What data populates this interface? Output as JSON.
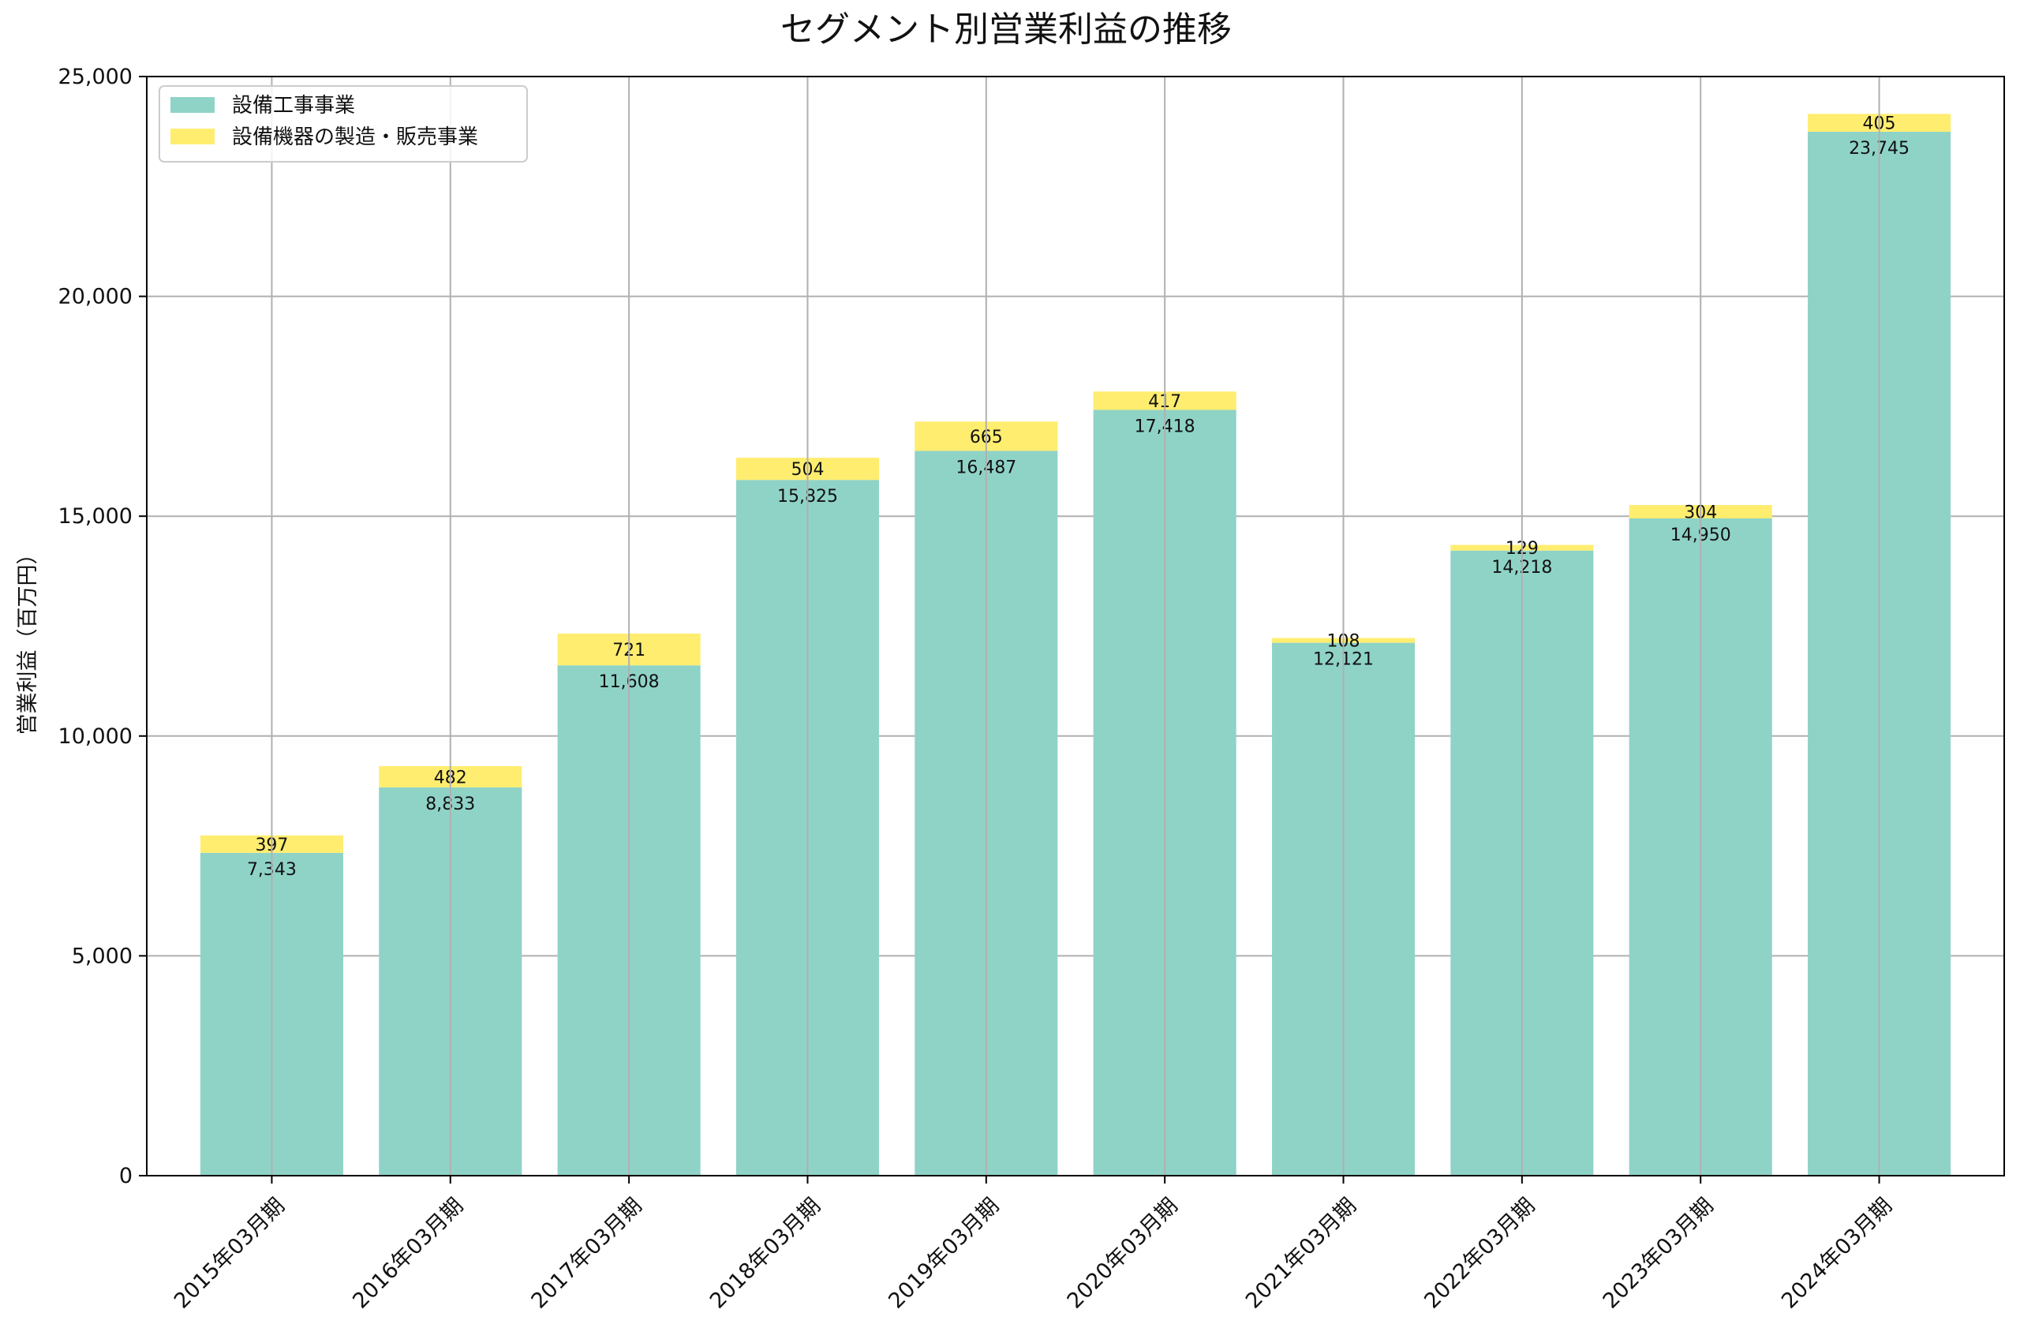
{
  "chart_data": {
    "type": "bar",
    "stacked": true,
    "title": "セグメント別営業利益の推移",
    "xlabel": "",
    "ylabel": "営業利益（百万円）",
    "ylim": [
      0,
      25000
    ],
    "yticks": [
      0,
      5000,
      10000,
      15000,
      20000,
      25000
    ],
    "ytick_labels": [
      "0",
      "5,000",
      "10,000",
      "15,000",
      "20,000",
      "25,000"
    ],
    "grid": true,
    "legend_position": "top-left",
    "categories": [
      "2015年03月期",
      "2016年03月期",
      "2017年03月期",
      "2018年03月期",
      "2019年03月期",
      "2020年03月期",
      "2021年03月期",
      "2022年03月期",
      "2023年03月期",
      "2024年03月期"
    ],
    "series": [
      {
        "name": "設備工事事業",
        "color": "#8fd3c7",
        "values": [
          7343,
          8833,
          11608,
          15825,
          16487,
          17418,
          12121,
          14218,
          14950,
          23745
        ],
        "labels": [
          "7,343",
          "8,833",
          "11,608",
          "15,825",
          "16,487",
          "17,418",
          "12,121",
          "14,218",
          "14,950",
          "23,745"
        ]
      },
      {
        "name": "設備機器の製造・販売事業",
        "color": "#ffed6f",
        "values": [
          397,
          482,
          721,
          504,
          665,
          417,
          108,
          129,
          304,
          405
        ],
        "labels": [
          "397",
          "482",
          "721",
          "504",
          "665",
          "417",
          "108",
          "129",
          "304",
          "405"
        ]
      }
    ]
  }
}
